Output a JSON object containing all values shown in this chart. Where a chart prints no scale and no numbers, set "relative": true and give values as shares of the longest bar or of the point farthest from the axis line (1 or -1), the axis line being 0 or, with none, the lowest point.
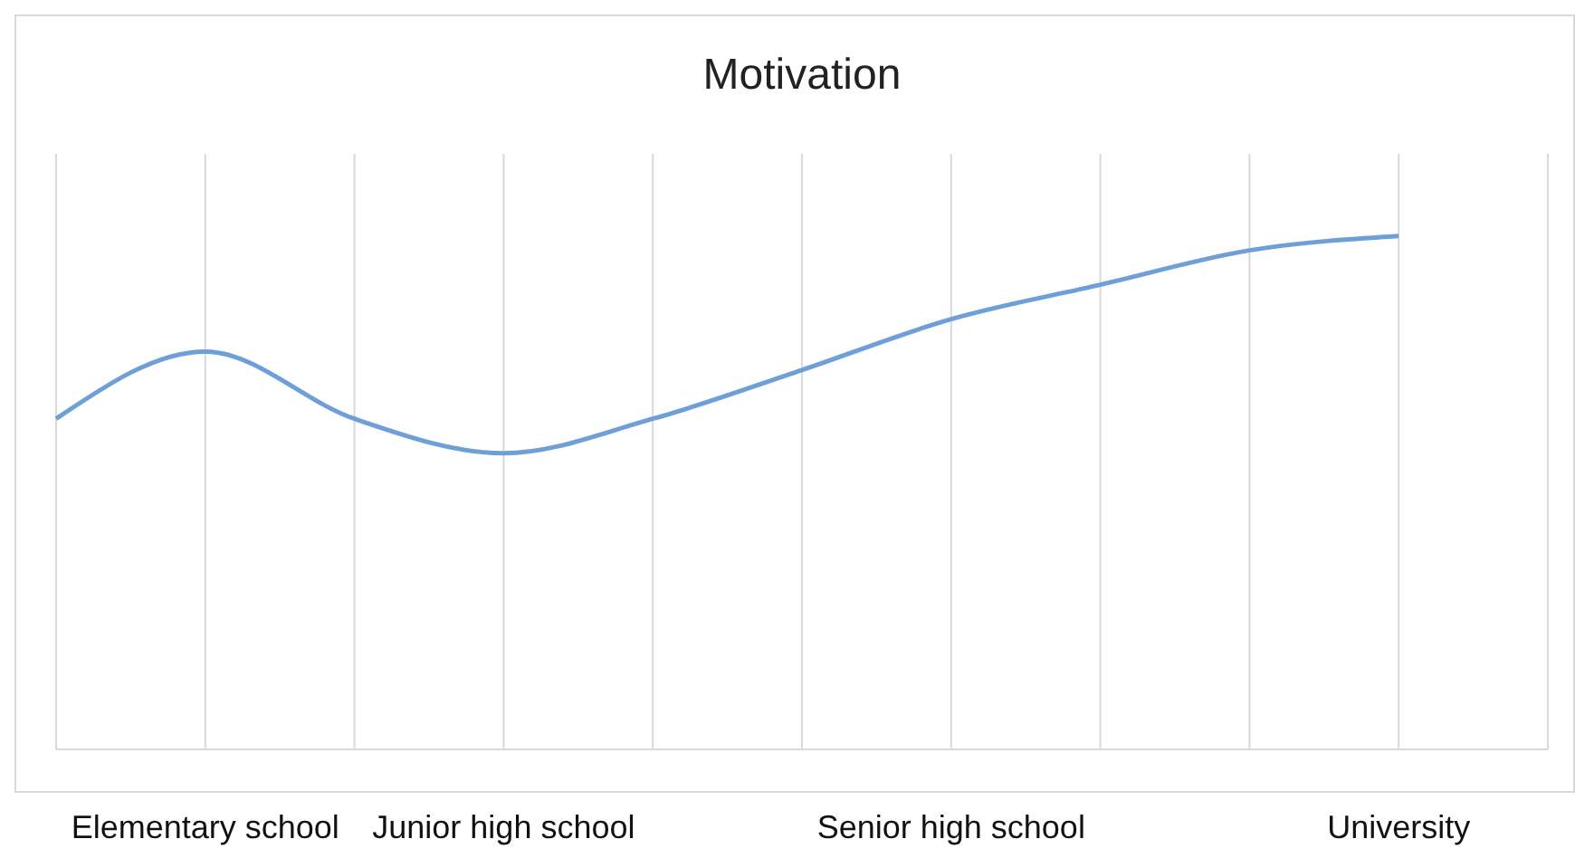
{
  "chart_data": {
    "type": "line",
    "title": "Motivation",
    "relative": true,
    "categories": [
      null,
      "Elementary school",
      null,
      "Junior high school",
      null,
      null,
      "Senior high school",
      null,
      null,
      "University",
      null
    ],
    "series": [
      {
        "color": "#6f9fd8",
        "values": [
          0.644,
          0.775,
          0.644,
          0.577,
          0.644,
          0.739,
          0.838,
          0.905,
          0.972,
          1,
          null
        ]
      }
    ],
    "grid": "x",
    "marker": "none",
    "line_style": "solid"
  }
}
